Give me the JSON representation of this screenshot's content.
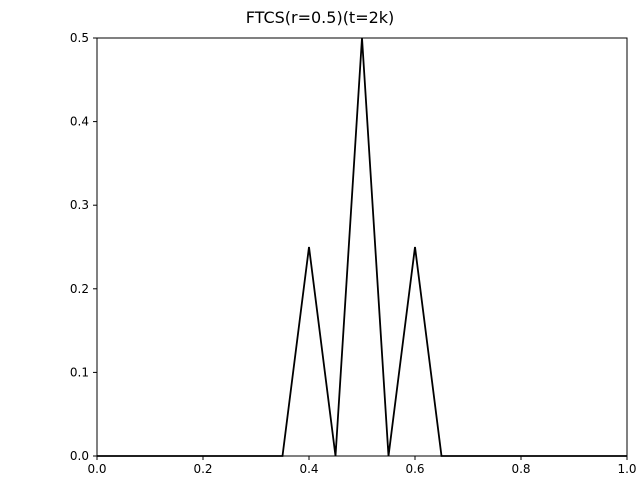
{
  "chart_data": {
    "type": "line",
    "title": "FTCS(r=0.5)(t=2k)",
    "xlabel": "",
    "ylabel": "",
    "xlim": [
      0.0,
      1.0
    ],
    "ylim": [
      0.0,
      0.5
    ],
    "grid": false,
    "x_ticks": [
      "0.0",
      "0.2",
      "0.4",
      "0.6",
      "0.8",
      "1.0"
    ],
    "y_ticks": [
      "0.0",
      "0.1",
      "0.2",
      "0.3",
      "0.4",
      "0.5"
    ],
    "series": [
      {
        "color": "#000000",
        "x": [
          0.0,
          0.05,
          0.1,
          0.15,
          0.2,
          0.25,
          0.3,
          0.35,
          0.4,
          0.45,
          0.5,
          0.55,
          0.6,
          0.65,
          0.7,
          0.75,
          0.8,
          0.85,
          0.9,
          0.95,
          1.0
        ],
        "y": [
          0,
          0,
          0,
          0,
          0,
          0,
          0,
          0,
          0.25,
          0,
          0.5,
          0,
          0.25,
          0,
          0,
          0,
          0,
          0,
          0,
          0,
          0
        ]
      }
    ]
  }
}
